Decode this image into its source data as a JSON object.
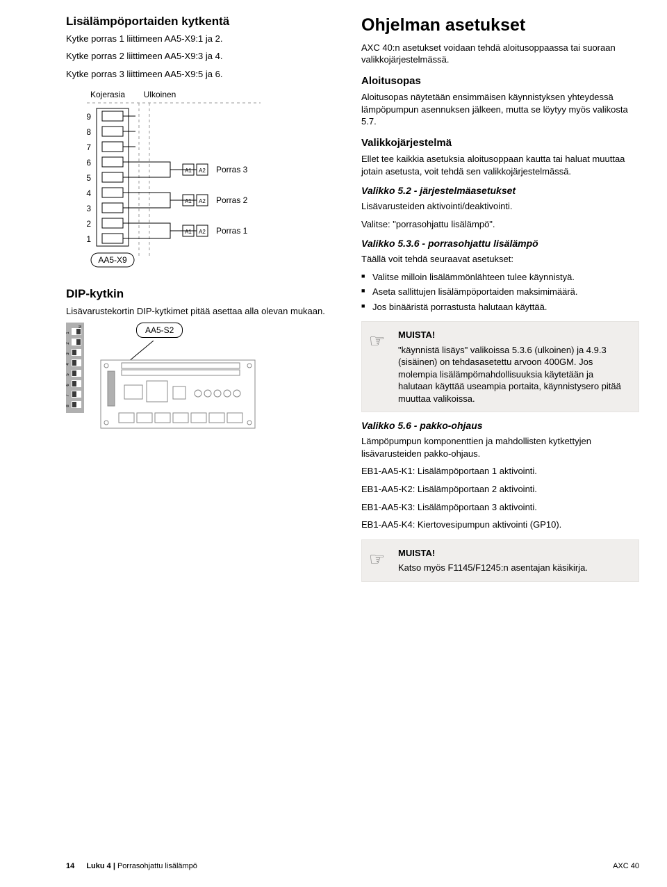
{
  "left": {
    "title": "Lisälämpöportaiden kytkentä",
    "p1": "Kytke porras 1 liittimeen AA5-X9:1 ja 2.",
    "p2": "Kytke porras 2 liittimeen AA5-X9:3 ja 4.",
    "p3": "Kytke porras 3 liittimeen AA5-X9:5 ja 6.",
    "diagram": {
      "label_left": "Kojerasia",
      "label_right": "Ulkoinen",
      "terminal_label": "AA5-X9",
      "rows": [
        "9",
        "8",
        "7",
        "6",
        "5",
        "4",
        "3",
        "2",
        "1"
      ],
      "porras3": "Porras 3",
      "porras2": "Porras 2",
      "porras1": "Porras 1",
      "a1": "A1",
      "a2": "A2",
      "colors": {
        "stroke": "#000000",
        "dashed": "#9a9a9a",
        "fill": "#ffffff"
      }
    },
    "dip_title": "DIP-kytkin",
    "dip_text": "Lisävarustekortin DIP-kytkimet pitää asettaa alla olevan mukaan.",
    "dip": {
      "on_label": "ON",
      "numbers": [
        "1",
        "2",
        "3",
        "4",
        "5",
        "6",
        "7",
        "8"
      ],
      "positions": [
        "on",
        "on",
        "off",
        "off",
        "off",
        "off",
        "off",
        "off"
      ],
      "board_label": "AA5-S2",
      "colors": {
        "body": "#b0b0b0",
        "slot": "#ffffff",
        "switch": "#3a3a3a",
        "board_stroke": "#888888"
      }
    }
  },
  "right": {
    "title": "Ohjelman asetukset",
    "intro": "AXC 40:n asetukset voidaan tehdä aloitusoppaassa tai suoraan valikkojärjestelmässä.",
    "aloitusopas_h": "Aloitusopas",
    "aloitusopas_p": "Aloitusopas näytetään ensimmäisen käynnistyksen yhteydessä lämpöpumpun asennuksen jälkeen, mutta se löytyy myös valikosta 5.7.",
    "valikko_h": "Valikkojärjestelmä",
    "valikko_p": "Ellet tee kaikkia asetuksia aloitusoppaan kautta tai haluat muuttaa jotain asetusta, voit tehdä sen valikkojärjestelmässä.",
    "v52_h": "Valikko 5.2 - järjestelmäasetukset",
    "v52_p1": "Lisävarusteiden aktivointi/deaktivointi.",
    "v52_p2": "Valitse: \"porrasohjattu lisälämpö\".",
    "v536_h": "Valikko 5.3.6 - porrasohjattu lisälämpö",
    "v536_intro": "Täällä voit tehdä seuraavat asetukset:",
    "v536_items": [
      "Valitse milloin lisälämmönlähteen tulee käynnistyä.",
      "Aseta sallittujen lisälämpöportaiden maksimimäärä.",
      "Jos binääristä porrastusta halutaan käyttää."
    ],
    "remember1_h": "MUISTA!",
    "remember1_p": "\"käynnistä lisäys\" valikoissa 5.3.6 (ulkoinen) ja 4.9.3 (sisäinen) on tehdasasetettu arvoon 400GM. Jos molempia lisälämpömahdollisuuksia käytetään ja halutaan käyttää useampia portaita, käynnistysero pitää muuttaa valikoissa.",
    "v56_h": "Valikko 5.6 - pakko-ohjaus",
    "v56_p": "Lämpöpumpun komponenttien ja mahdollisten kytkettyjen lisävarusteiden pakko-ohjaus.",
    "v56_items": [
      "EB1-AA5-K1: Lisälämpöportaan 1 aktivointi.",
      "EB1-AA5-K2: Lisälämpöportaan 2 aktivointi.",
      "EB1-AA5-K3: Lisälämpöportaan 3 aktivointi.",
      "EB1-AA5-K4: Kiertovesipumpun aktivointi (GP10)."
    ],
    "remember2_h": "MUISTA!",
    "remember2_p": "Katso myös F1145/F1245:n asentajan käsikirja."
  },
  "footer": {
    "page": "14",
    "chapter_prefix": "Luku 4 | ",
    "chapter": "Porrasohjattu lisälämpö",
    "product": "AXC 40"
  }
}
